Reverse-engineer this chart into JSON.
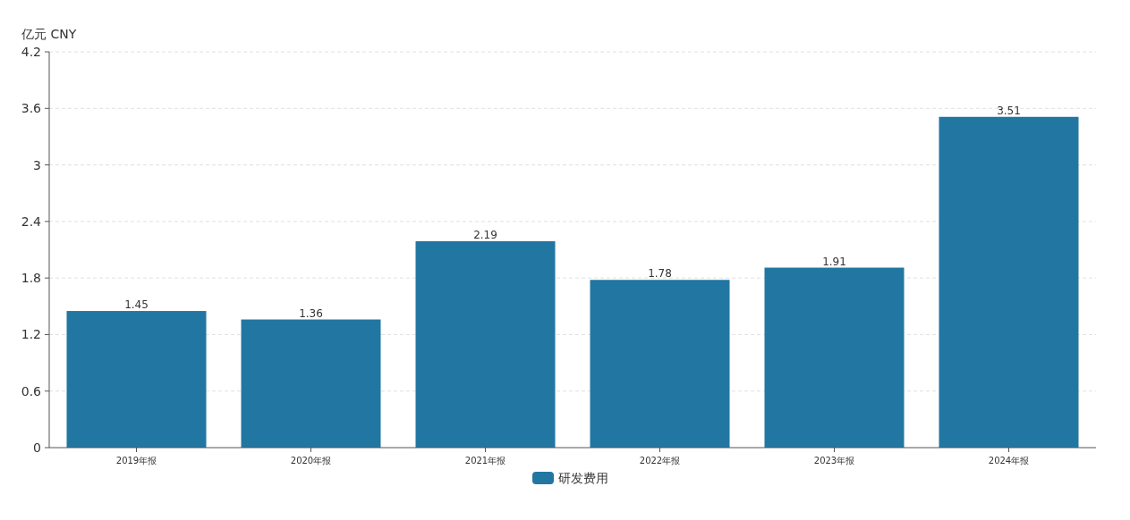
{
  "chart_data": {
    "type": "bar",
    "ylabel": "亿元  CNY",
    "categories": [
      "2019年报",
      "2020年报",
      "2021年报",
      "2022年报",
      "2023年报",
      "2024年报"
    ],
    "series": [
      {
        "name": "研发费用",
        "color": "#2277a2",
        "values": [
          1.45,
          1.36,
          2.19,
          1.78,
          1.91,
          3.51
        ]
      }
    ],
    "ylim": [
      0,
      4.2
    ],
    "yticks": [
      0,
      0.6,
      1.2,
      1.8,
      2.4,
      3,
      3.6,
      4.2
    ],
    "grid": "y",
    "legend": "bottom",
    "data_labels": true
  }
}
